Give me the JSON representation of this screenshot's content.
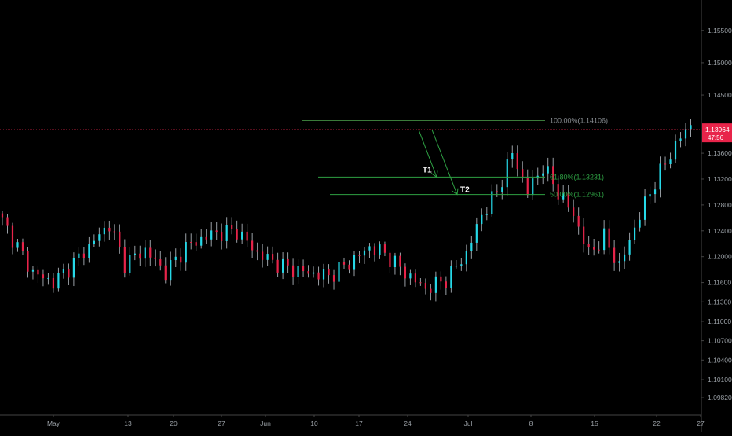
{
  "colors": {
    "background": "#000000",
    "up": "#26d9e8",
    "down": "#e8244a",
    "wick": "#9aa0a6",
    "axis_text": "#9aa0a6",
    "axis_line": "#444444",
    "fib": "#2ea043",
    "fib_100": "#3a7a3a",
    "price_line": "#e8244a",
    "arrow": "#2ea043",
    "price_tag_bg": "#e8244a"
  },
  "chart_data": {
    "type": "candlestick",
    "symbol_hint": "EURUSD",
    "ylim": [
      1.0965,
      1.1585
    ],
    "x_tick_labels": [
      "May",
      "13",
      "20",
      "27",
      "Jun",
      "10",
      "17",
      "24",
      "Jul",
      "8",
      "15",
      "22",
      "27"
    ],
    "y_tick_labels": [
      "1.15500",
      "1.15000",
      "1.14500",
      "1.13600",
      "1.13200",
      "1.12800",
      "1.12400",
      "1.12000",
      "1.11600",
      "1.11300",
      "1.11000",
      "1.10700",
      "1.10400",
      "1.10100",
      "1.09820"
    ],
    "y_tick_values": [
      1.155,
      1.15,
      1.145,
      1.136,
      1.132,
      1.128,
      1.124,
      1.12,
      1.116,
      1.113,
      1.11,
      1.107,
      1.104,
      1.101,
      1.0982
    ],
    "current_price": {
      "label": "1.13964",
      "value": 1.13964,
      "countdown": "47:56"
    },
    "fib_levels": [
      {
        "label": "100.00%(1.14106)",
        "value": 1.14106
      },
      {
        "label": "61.80%(1.13231)",
        "value": 1.13231
      },
      {
        "label": "50.00%(1.12961)",
        "value": 1.12961
      }
    ],
    "targets": [
      {
        "label": "T1"
      },
      {
        "label": "T2"
      }
    ],
    "close_anchors": [
      [
        0,
        1.1255
      ],
      [
        6,
        1.1175
      ],
      [
        10,
        1.116
      ],
      [
        14,
        1.119
      ],
      [
        18,
        1.1225
      ],
      [
        21,
        1.125
      ],
      [
        24,
        1.119
      ],
      [
        28,
        1.121
      ],
      [
        32,
        1.1175
      ],
      [
        36,
        1.1215
      ],
      [
        41,
        1.1235
      ],
      [
        46,
        1.124
      ],
      [
        50,
        1.1205
      ],
      [
        55,
        1.1185
      ],
      [
        60,
        1.1175
      ],
      [
        64,
        1.117
      ],
      [
        68,
        1.119
      ],
      [
        72,
        1.1215
      ],
      [
        75,
        1.1205
      ],
      [
        79,
        1.1175
      ],
      [
        83,
        1.115
      ],
      [
        87,
        1.1165
      ],
      [
        91,
        1.1205
      ],
      [
        94,
        1.1265
      ],
      [
        97,
        1.13
      ],
      [
        100,
        1.136
      ],
      [
        103,
        1.13
      ],
      [
        106,
        1.134
      ],
      [
        109,
        1.13
      ],
      [
        112,
        1.1265
      ],
      [
        115,
        1.1205
      ],
      [
        118,
        1.123
      ],
      [
        121,
        1.1185
      ],
      [
        124,
        1.1245
      ],
      [
        127,
        1.13
      ],
      [
        130,
        1.1345
      ],
      [
        133,
        1.1385
      ],
      [
        135,
        1.1405
      ]
    ]
  }
}
